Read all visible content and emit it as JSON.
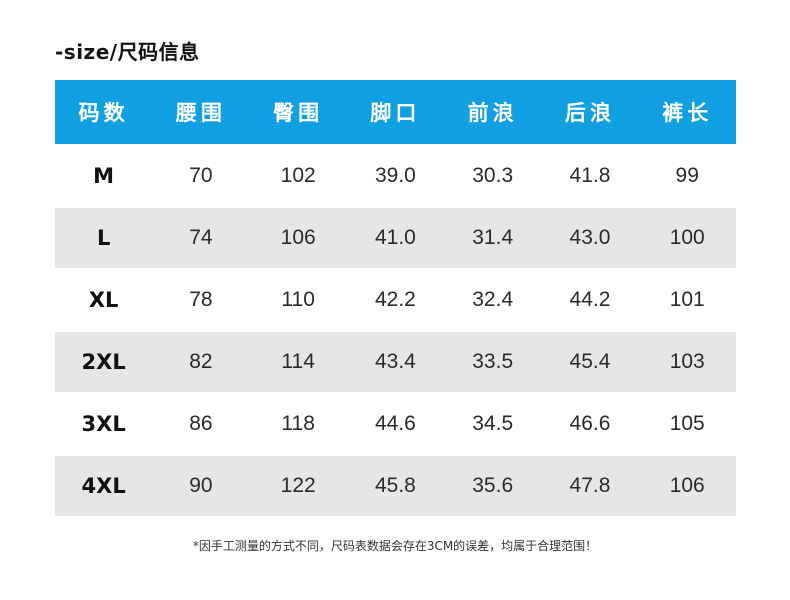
{
  "title": "-size/尺码信息",
  "headers": [
    "码数",
    "腰围",
    "臀围",
    "脚口",
    "前浪",
    "后浪",
    "裤长"
  ],
  "rows": [
    [
      "M",
      "70",
      "102",
      "39.0",
      "30.3",
      "41.8",
      "99"
    ],
    [
      "L",
      "74",
      "106",
      "41.0",
      "31.4",
      "43.0",
      "100"
    ],
    [
      "XL",
      "78",
      "110",
      "42.2",
      "32.4",
      "44.2",
      "101"
    ],
    [
      "2XL",
      "82",
      "114",
      "43.4",
      "33.5",
      "45.4",
      "103"
    ],
    [
      "3XL",
      "86",
      "118",
      "44.6",
      "34.5",
      "46.6",
      "105"
    ],
    [
      "4XL",
      "90",
      "122",
      "45.8",
      "35.6",
      "47.8",
      "106"
    ]
  ],
  "footnote": "*因手工测量的方式不同，尺码表数据会存在3CM的误差，均属于合理范围！",
  "colors": {
    "header_background": "#109fe0",
    "alt_row_background": "#e6e6e6"
  }
}
